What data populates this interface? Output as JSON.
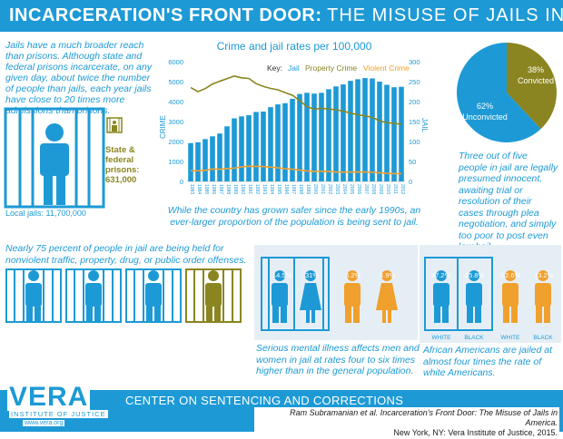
{
  "header": {
    "title_bold": "INCARCERATION'S FRONT DOOR:",
    "title_light": "THE MISUSE OF JAILS IN AMERICA"
  },
  "intro": {
    "text": "Jails have a much broader reach than prisons. Although state and federal prisons incarcerate, on any given day, about twice the number of people than jails, each year jails have close to 20 times more admissions than prisons.",
    "local_jails": "Local jails: 11,700,000",
    "state_federal": "State & federal prisons: 631,000"
  },
  "chart_data": {
    "type": "bar",
    "title": "Crime and jail rates per 100,000",
    "key_label": "Key:",
    "legend": [
      "Jail",
      "Property Crime",
      "Violent Crime"
    ],
    "colors": {
      "jail": "#1d9ad6",
      "property": "#8a8520",
      "violent": "#f0a02c",
      "axis": "#1d9ad6"
    },
    "categories": [
      "1983",
      "1984",
      "1985",
      "1986",
      "1987",
      "1988",
      "1989",
      "1990",
      "1991",
      "1992",
      "1993",
      "1994",
      "1995",
      "1996",
      "1997",
      "1998",
      "1999",
      "2000",
      "2001",
      "2002",
      "2003",
      "2004",
      "2005",
      "2006",
      "2007",
      "2008",
      "2009",
      "2010",
      "2011",
      "2012"
    ],
    "ylabel_left": "CRIME",
    "ylabel_right": "JAIL",
    "ylim_left": [
      0,
      6000
    ],
    "ylim_right": [
      0,
      300
    ],
    "yticks_left": [
      "0",
      "1000",
      "2000",
      "3000",
      "4000",
      "5000",
      "6000"
    ],
    "yticks_right": [
      "0",
      "50",
      "100",
      "150",
      "200",
      "250",
      "300"
    ],
    "series": [
      {
        "name": "Jail",
        "axis": "right",
        "values": [
          96,
          98,
          106,
          113,
          120,
          138,
          158,
          163,
          166,
          174,
          175,
          186,
          193,
          196,
          207,
          219,
          222,
          220,
          222,
          231,
          238,
          243,
          252,
          256,
          259,
          258,
          250,
          242,
          236,
          237
        ]
      },
      {
        "name": "Property Crime",
        "axis": "left",
        "values": [
          4700,
          4500,
          4650,
          4880,
          5020,
          5150,
          5280,
          5190,
          5160,
          4900,
          4760,
          4660,
          4590,
          4450,
          4320,
          4050,
          3750,
          3620,
          3660,
          3630,
          3590,
          3520,
          3430,
          3340,
          3280,
          3210,
          3040,
          2940,
          2910,
          2860
        ]
      },
      {
        "name": "Violent Crime",
        "axis": "left",
        "values": [
          540,
          530,
          555,
          620,
          610,
          640,
          665,
          730,
          760,
          755,
          745,
          715,
          685,
          635,
          610,
          565,
          525,
          505,
          505,
          495,
          475,
          465,
          470,
          475,
          470,
          460,
          430,
          405,
          390,
          390
        ]
      }
    ],
    "caption": "While the country has grown safer since the early 1990s, an ever-larger proportion of the population is being sent to jail."
  },
  "pie": {
    "convicted_pct": 38,
    "unconvicted_pct": 62,
    "convicted_value": "38%",
    "convicted_label": "Convicted",
    "unconvicted_value": "62%",
    "unconvicted_label": "Unconvicted",
    "caption": "Three out of five people in jail are legally presumed innocent, awaiting trial or resolution of their cases through plea negotiation, and simply too poor to post even low bail."
  },
  "nonviolent": {
    "text": "Nearly 75 percent of people in jail are being held for nonviolent traffic, property, drug, or public order offenses."
  },
  "mental_health": {
    "values": [
      "14.5%",
      "31%",
      "3.2%",
      "4.9%"
    ],
    "caption": "Serious mental illness affects men and women in jail at rates four to six times higher than in the general population."
  },
  "race": {
    "values": [
      "47.2%",
      "35.8%",
      "62.6%",
      "13.2%"
    ],
    "labels": [
      "WHITE",
      "BLACK",
      "WHITE",
      "BLACK"
    ],
    "caption": "African Americans are jailed at almost four times the rate of white Americans."
  },
  "footer": {
    "logo": "VERA",
    "institute": "INSTITUTE OF JUSTICE",
    "url": "www.vera.org",
    "center_title": "CENTER ON SENTENCING AND CORRECTIONS",
    "citation_1": "Ram Subramanian et al. Incarceration's Front Door: The Misuse of Jails in America.",
    "citation_2": "New York, NY: Vera Institute of Justice, 2015."
  }
}
